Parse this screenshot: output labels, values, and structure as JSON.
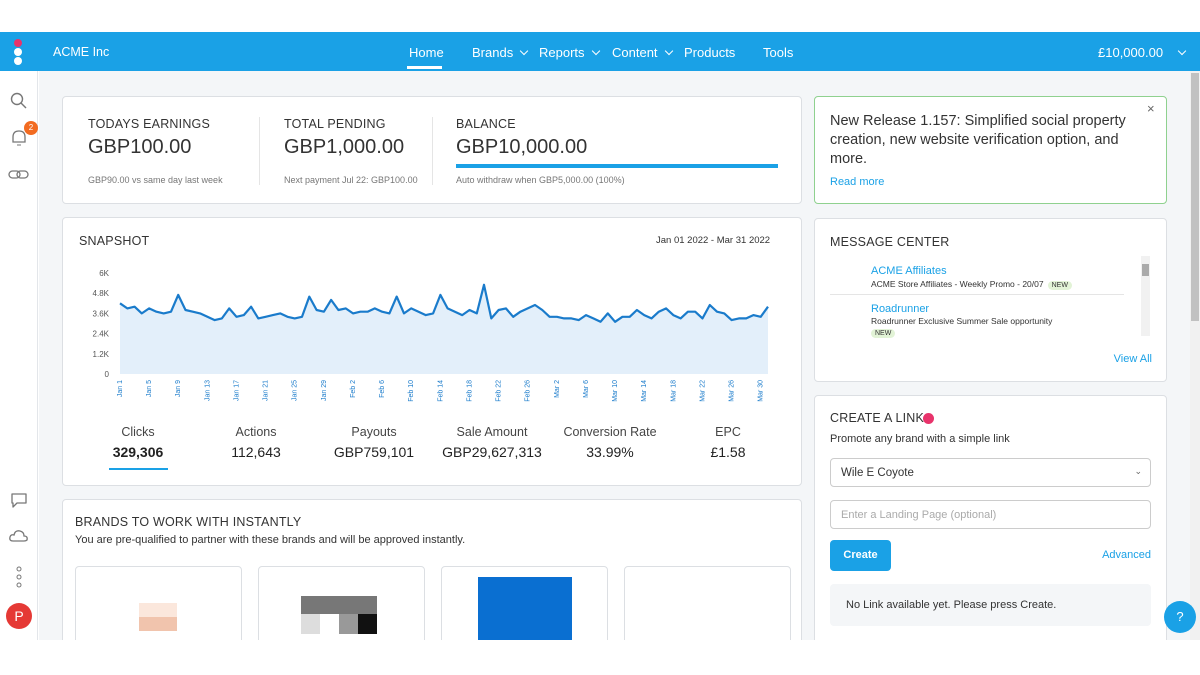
{
  "nav": {
    "brand": "ACME Inc",
    "items": [
      "Home",
      "Brands",
      "Reports",
      "Content",
      "Products",
      "Tools"
    ],
    "balance": "£10,000.00",
    "badge": "2"
  },
  "earnings": [
    {
      "title": "TODAYS EARNINGS",
      "amount": "GBP100.00",
      "note": "GBP90.00 vs same day last week"
    },
    {
      "title": "TOTAL PENDING",
      "amount": "GBP1,000.00",
      "note": "Next payment Jul 22: GBP100.00"
    },
    {
      "title": "BALANCE",
      "amount": "GBP10,000.00",
      "note": "Auto withdraw when GBP5,000.00 (100%)"
    }
  ],
  "release": {
    "text": "New Release 1.157: Simplified social property creation, new website verification option, and more.",
    "link": "Read more"
  },
  "snapshot": {
    "title": "SNAPSHOT",
    "range": "Jan 01 2022 - Mar 31 2022",
    "chart": {
      "type": "line",
      "color": "#1a7bcb",
      "fill": "#e3effa",
      "ylim": [
        0,
        6000
      ],
      "yticks": [
        0,
        {
          "value": 1200,
          "label": "1.2K"
        },
        {
          "value": 2400,
          "label": "2.4K"
        },
        {
          "value": 3600,
          "label": "3.6K"
        },
        {
          "value": 4800,
          "label": "4.8K"
        },
        {
          "value": 6000,
          "label": "6K"
        }
      ],
      "grid": false,
      "categories": [
        "Jan 1",
        null,
        null,
        null,
        "Jan 5",
        null,
        null,
        null,
        "Jan 9",
        null,
        null,
        null,
        "Jan 13",
        null,
        null,
        null,
        "Jan 17",
        null,
        null,
        null,
        "Jan 21",
        null,
        null,
        null,
        "Jan 25",
        null,
        null,
        null,
        "Jan 29",
        null,
        null,
        null,
        "Feb 2",
        null,
        null,
        null,
        "Feb 6",
        null,
        null,
        null,
        "Feb 10",
        null,
        null,
        null,
        "Feb 14",
        null,
        null,
        null,
        "Feb 18",
        null,
        null,
        null,
        "Feb 22",
        null,
        null,
        null,
        "Feb 26",
        null,
        null,
        null,
        "Mar 2",
        null,
        null,
        null,
        "Mar 6",
        null,
        null,
        null,
        "Mar 10",
        null,
        null,
        null,
        "Mar 14",
        null,
        null,
        null,
        "Mar 18",
        null,
        null,
        null,
        "Mar 22",
        null,
        null,
        null,
        "Mar 26",
        null,
        null,
        null,
        "Mar 30",
        null
      ],
      "values": [
        4200,
        3900,
        4000,
        3600,
        3900,
        3700,
        3600,
        3700,
        4700,
        3800,
        3700,
        3600,
        3400,
        3200,
        3300,
        3900,
        3400,
        3500,
        4000,
        3300,
        3400,
        3500,
        3600,
        3400,
        3300,
        3400,
        4600,
        3800,
        3700,
        4400,
        3800,
        3900,
        3600,
        3700,
        3700,
        3900,
        3700,
        3600,
        4600,
        3600,
        3900,
        3700,
        3500,
        3600,
        4700,
        3900,
        3700,
        3500,
        3800,
        3600,
        5300,
        3300,
        3800,
        3900,
        3400,
        3700,
        3900,
        4100,
        3800,
        3400,
        3400,
        3300,
        3300,
        3200,
        3500,
        3300,
        3100,
        3600,
        3100,
        3400,
        3400,
        3800,
        3500,
        3300,
        3700,
        3900,
        3500,
        3300,
        3700,
        3700,
        3300,
        4100,
        3700,
        3600,
        3200,
        3300,
        3300,
        3500,
        3400,
        4000
      ]
    },
    "metrics": [
      {
        "label": "Clicks",
        "value": "329,306"
      },
      {
        "label": "Actions",
        "value": "112,643"
      },
      {
        "label": "Payouts",
        "value": "GBP759,101"
      },
      {
        "label": "Sale Amount",
        "value": "GBP29,627,313"
      },
      {
        "label": "Conversion Rate",
        "value": "33.99%"
      },
      {
        "label": "EPC",
        "value": "£1.58"
      }
    ]
  },
  "messages": {
    "title": "MESSAGE CENTER",
    "items": [
      {
        "from": "ACME Affiliates",
        "text": "ACME Store Affiliates - Weekly Promo - 20/07",
        "tag": "NEW"
      },
      {
        "from": "Roadrunner",
        "text": "Roadrunner Exclusive Summer Sale opportunity",
        "tag": "NEW"
      }
    ],
    "view_all": "View All"
  },
  "create_link": {
    "title": "CREATE A LINK",
    "subtitle": "Promote any brand with a simple link",
    "select": "Wile E Coyote",
    "placeholder": "Enter a Landing Page (optional)",
    "button": "Create",
    "advanced": "Advanced",
    "empty": "No Link available yet. Please press Create."
  },
  "brands": {
    "title": "BRANDS TO WORK WITH INSTANTLY",
    "subtitle": "You are pre-qualified to partner with these brands and will be approved instantly."
  },
  "user": {
    "initial": "P"
  },
  "help": "?"
}
